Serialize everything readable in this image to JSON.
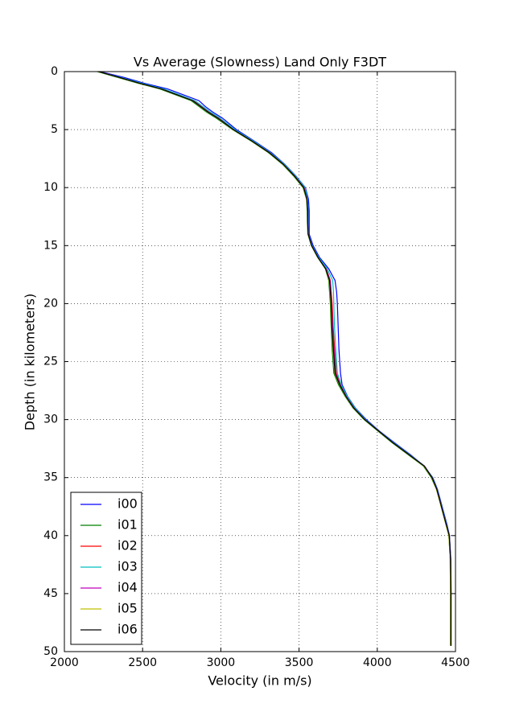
{
  "chart_data": {
    "type": "line",
    "title": "Vs Average (Slowness) Land Only F3DT",
    "x_label": "Velocity (in m/s)",
    "y_label": "Depth (in kilometers)",
    "xlim": [
      2000,
      4500
    ],
    "xticks": [
      2000,
      2500,
      3000,
      3500,
      4000,
      4500
    ],
    "ylim": [
      0,
      50
    ],
    "yticks": [
      0,
      5,
      10,
      15,
      20,
      25,
      30,
      35,
      40,
      45,
      50
    ],
    "y_inverted": true,
    "grid": true,
    "legend": "lower left",
    "y": [
      0,
      0.5,
      1,
      1.5,
      2,
      2.5,
      3,
      3.5,
      4,
      5,
      6,
      7,
      8,
      9,
      10,
      11,
      12,
      13,
      14,
      15,
      16,
      17,
      18,
      19,
      20,
      22,
      24,
      26,
      27,
      28,
      29,
      30,
      31,
      32,
      33,
      34,
      35,
      36,
      37,
      38,
      39,
      40,
      42,
      45,
      49.5
    ],
    "series": [
      {
        "name": "i00",
        "color": "#0000ff",
        "values": [
          2230,
          2380,
          2510,
          2660,
          2760,
          2860,
          2900,
          2950,
          3010,
          3100,
          3215,
          3325,
          3410,
          3480,
          3540,
          3560,
          3565,
          3565,
          3565,
          3590,
          3630,
          3690,
          3730,
          3740,
          3745,
          3750,
          3755,
          3765,
          3775,
          3810,
          3860,
          3930,
          4015,
          4110,
          4210,
          4300,
          4355,
          4385,
          4405,
          4425,
          4445,
          4462,
          4470,
          4472,
          4472
        ]
      },
      {
        "name": "i01",
        "color": "#008000",
        "values": [
          2210,
          2340,
          2470,
          2610,
          2710,
          2810,
          2860,
          2910,
          2970,
          3075,
          3195,
          3305,
          3395,
          3465,
          3525,
          3548,
          3552,
          3553,
          3556,
          3578,
          3618,
          3668,
          3690,
          3695,
          3700,
          3705,
          3712,
          3722,
          3752,
          3795,
          3845,
          3915,
          4005,
          4095,
          4195,
          4295,
          4345,
          4378,
          4398,
          4418,
          4438,
          4458,
          4466,
          4468,
          4468
        ]
      },
      {
        "name": "i02",
        "color": "#ff0000",
        "values": [
          2225,
          2355,
          2485,
          2625,
          2725,
          2825,
          2875,
          2925,
          2985,
          3085,
          3205,
          3315,
          3405,
          3475,
          3535,
          3552,
          3556,
          3556,
          3559,
          3582,
          3622,
          3674,
          3700,
          3706,
          3712,
          3718,
          3728,
          3738,
          3765,
          3805,
          3855,
          3922,
          4012,
          4102,
          4202,
          4302,
          4352,
          4382,
          4402,
          4422,
          4442,
          4461,
          4469,
          4471,
          4471
        ]
      },
      {
        "name": "i03",
        "color": "#00bfbf",
        "values": [
          2220,
          2360,
          2495,
          2635,
          2735,
          2835,
          2885,
          2935,
          2995,
          3090,
          3210,
          3318,
          3408,
          3478,
          3538,
          3555,
          3558,
          3558,
          3560,
          3584,
          3625,
          3680,
          3715,
          3720,
          3722,
          3727,
          3735,
          3745,
          3770,
          3808,
          3858,
          3925,
          4013,
          4105,
          4205,
          4302,
          4353,
          4383,
          4403,
          4423,
          4443,
          4461,
          4469,
          4471,
          4471
        ]
      },
      {
        "name": "i04",
        "color": "#bf00bf",
        "values": [
          2222,
          2352,
          2482,
          2622,
          2722,
          2822,
          2872,
          2922,
          2982,
          3082,
          3202,
          3312,
          3402,
          3472,
          3532,
          3551,
          3556,
          3556,
          3559,
          3581,
          3621,
          3672,
          3698,
          3703,
          3708,
          3714,
          3724,
          3734,
          3762,
          3802,
          3852,
          3921,
          4011,
          4101,
          4201,
          4301,
          4351,
          4381,
          4401,
          4421,
          4441,
          4460,
          4468,
          4470,
          4470
        ]
      },
      {
        "name": "i05",
        "color": "#bfbf00",
        "values": [
          2218,
          2348,
          2478,
          2618,
          2718,
          2818,
          2868,
          2918,
          2978,
          3078,
          3198,
          3308,
          3398,
          3468,
          3528,
          3549,
          3554,
          3554,
          3557,
          3579,
          3619,
          3669,
          3693,
          3698,
          3703,
          3708,
          3718,
          3728,
          3758,
          3798,
          3848,
          3918,
          4008,
          4098,
          4198,
          4298,
          4348,
          4378,
          4398,
          4418,
          4438,
          4458,
          4466,
          4468,
          4468
        ]
      },
      {
        "name": "i06",
        "color": "#000000",
        "values": [
          2220,
          2350,
          2480,
          2620,
          2720,
          2820,
          2870,
          2920,
          2980,
          3080,
          3200,
          3310,
          3400,
          3470,
          3530,
          3550,
          3555,
          3555,
          3558,
          3580,
          3620,
          3670,
          3695,
          3700,
          3705,
          3710,
          3720,
          3730,
          3760,
          3800,
          3850,
          3920,
          4010,
          4100,
          4200,
          4300,
          4350,
          4380,
          4400,
          4420,
          4440,
          4460,
          4468,
          4470,
          4470
        ]
      }
    ]
  }
}
